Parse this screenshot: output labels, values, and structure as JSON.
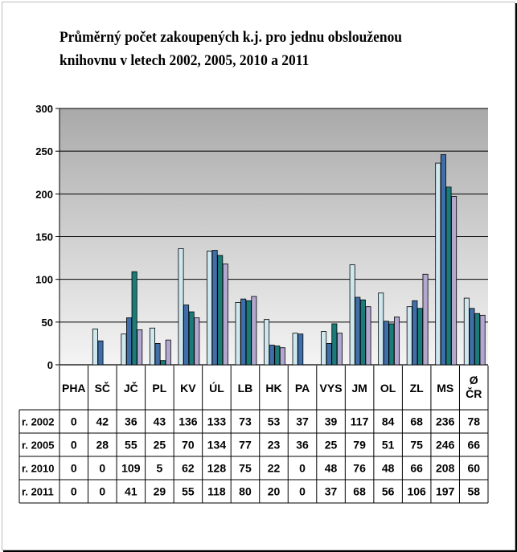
{
  "title_line1": "Průměrný počet zakoupených  k.j. pro jednu obslouženou",
  "title_line2": "knihovnu v letech 2002,  2005, 2010 a 2011",
  "chart_data": {
    "type": "bar",
    "title": "Průměrný počet zakoupených  k.j. pro jednu obslouženou knihovnu v letech 2002,  2005, 2010 a 2011",
    "categories": [
      "PHA",
      "SČ",
      "JČ",
      "PL",
      "KV",
      "ÚL",
      "LB",
      "HK",
      "PA",
      "VYS",
      "JM",
      "OL",
      "ZL",
      "MS",
      "Ø ČR"
    ],
    "ylim": [
      0,
      300
    ],
    "yticks": [
      "300",
      "250",
      "200",
      "150",
      "100",
      "50",
      "0"
    ],
    "grid": true,
    "legend": "table below chart",
    "series": [
      {
        "name": "r. 2002",
        "color": "#cfe8ef",
        "values": [
          0,
          42,
          36,
          43,
          136,
          133,
          73,
          53,
          37,
          39,
          117,
          84,
          68,
          236,
          78
        ]
      },
      {
        "name": "r. 2005",
        "color": "#3f6ea8",
        "values": [
          0,
          28,
          55,
          25,
          70,
          134,
          77,
          23,
          36,
          25,
          79,
          51,
          75,
          246,
          66
        ]
      },
      {
        "name": "r. 2010",
        "color": "#1a7b78",
        "values": [
          0,
          0,
          109,
          5,
          62,
          128,
          75,
          22,
          0,
          48,
          76,
          48,
          66,
          208,
          60
        ]
      },
      {
        "name": "r. 2011",
        "color": "#b3a6cf",
        "values": [
          0,
          0,
          41,
          29,
          55,
          118,
          80,
          20,
          0,
          37,
          68,
          56,
          106,
          197,
          58
        ]
      }
    ]
  }
}
